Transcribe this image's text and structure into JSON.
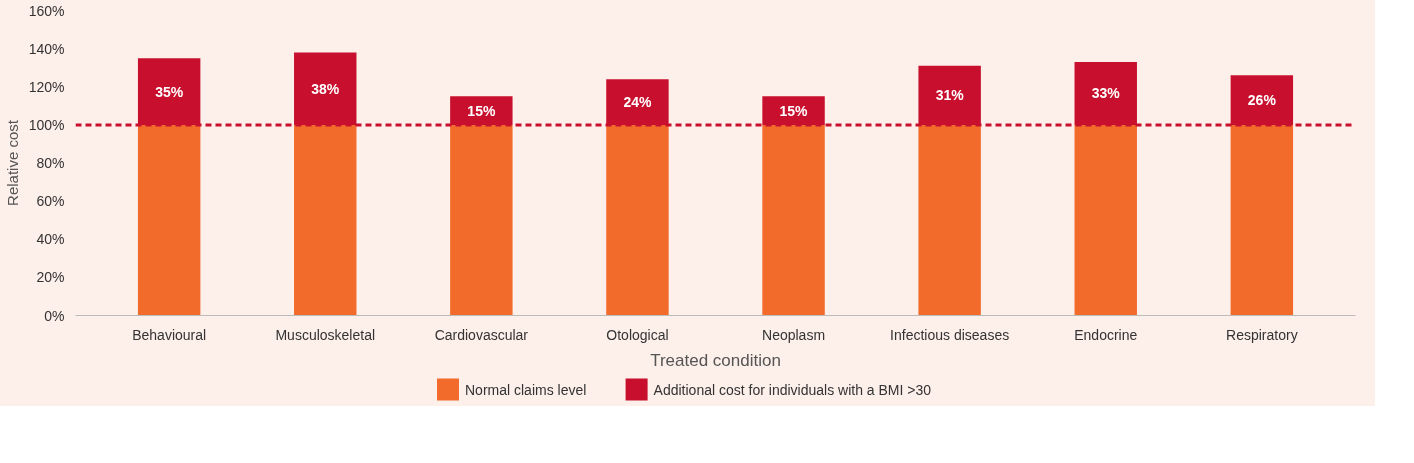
{
  "chart_data": {
    "type": "bar",
    "stacked": true,
    "xlabel": "Treated condition",
    "ylabel": "Relative cost",
    "categories": [
      "Behavioural",
      "Musculoskeletal",
      "Cardiovascular",
      "Otological",
      "Neoplasm",
      "Infectious diseases",
      "Endocrine",
      "Respiratory"
    ],
    "series": [
      {
        "name": "Normal claims level",
        "color": "#f26b2b",
        "values": [
          100,
          100,
          100,
          100,
          100,
          100,
          100,
          100
        ]
      },
      {
        "name": "Additional cost for individuals with a BMI >30",
        "color": "#c8102e",
        "values": [
          35,
          38,
          15,
          24,
          15,
          31,
          33,
          26
        ],
        "value_labels": [
          "35%",
          "38%",
          "15%",
          "24%",
          "15%",
          "31%",
          "33%",
          "26%"
        ]
      }
    ],
    "ylim": [
      0,
      160
    ],
    "yticks": [
      {
        "value": 0,
        "label": "0%"
      },
      {
        "value": 20,
        "label": "20%"
      },
      {
        "value": 40,
        "label": "40%"
      },
      {
        "value": 60,
        "label": "60%"
      },
      {
        "value": 80,
        "label": "80%"
      },
      {
        "value": 100,
        "label": "100%"
      },
      {
        "value": 120,
        "label": "120%"
      },
      {
        "value": 140,
        "label": "140%"
      },
      {
        "value": 160,
        "label": "160%"
      }
    ],
    "ref_lines": [
      {
        "axis": "y",
        "value": 100,
        "label": null,
        "color": "#c8102e",
        "line_style": "dashed"
      }
    ],
    "grid": false,
    "legend": "bottom"
  }
}
